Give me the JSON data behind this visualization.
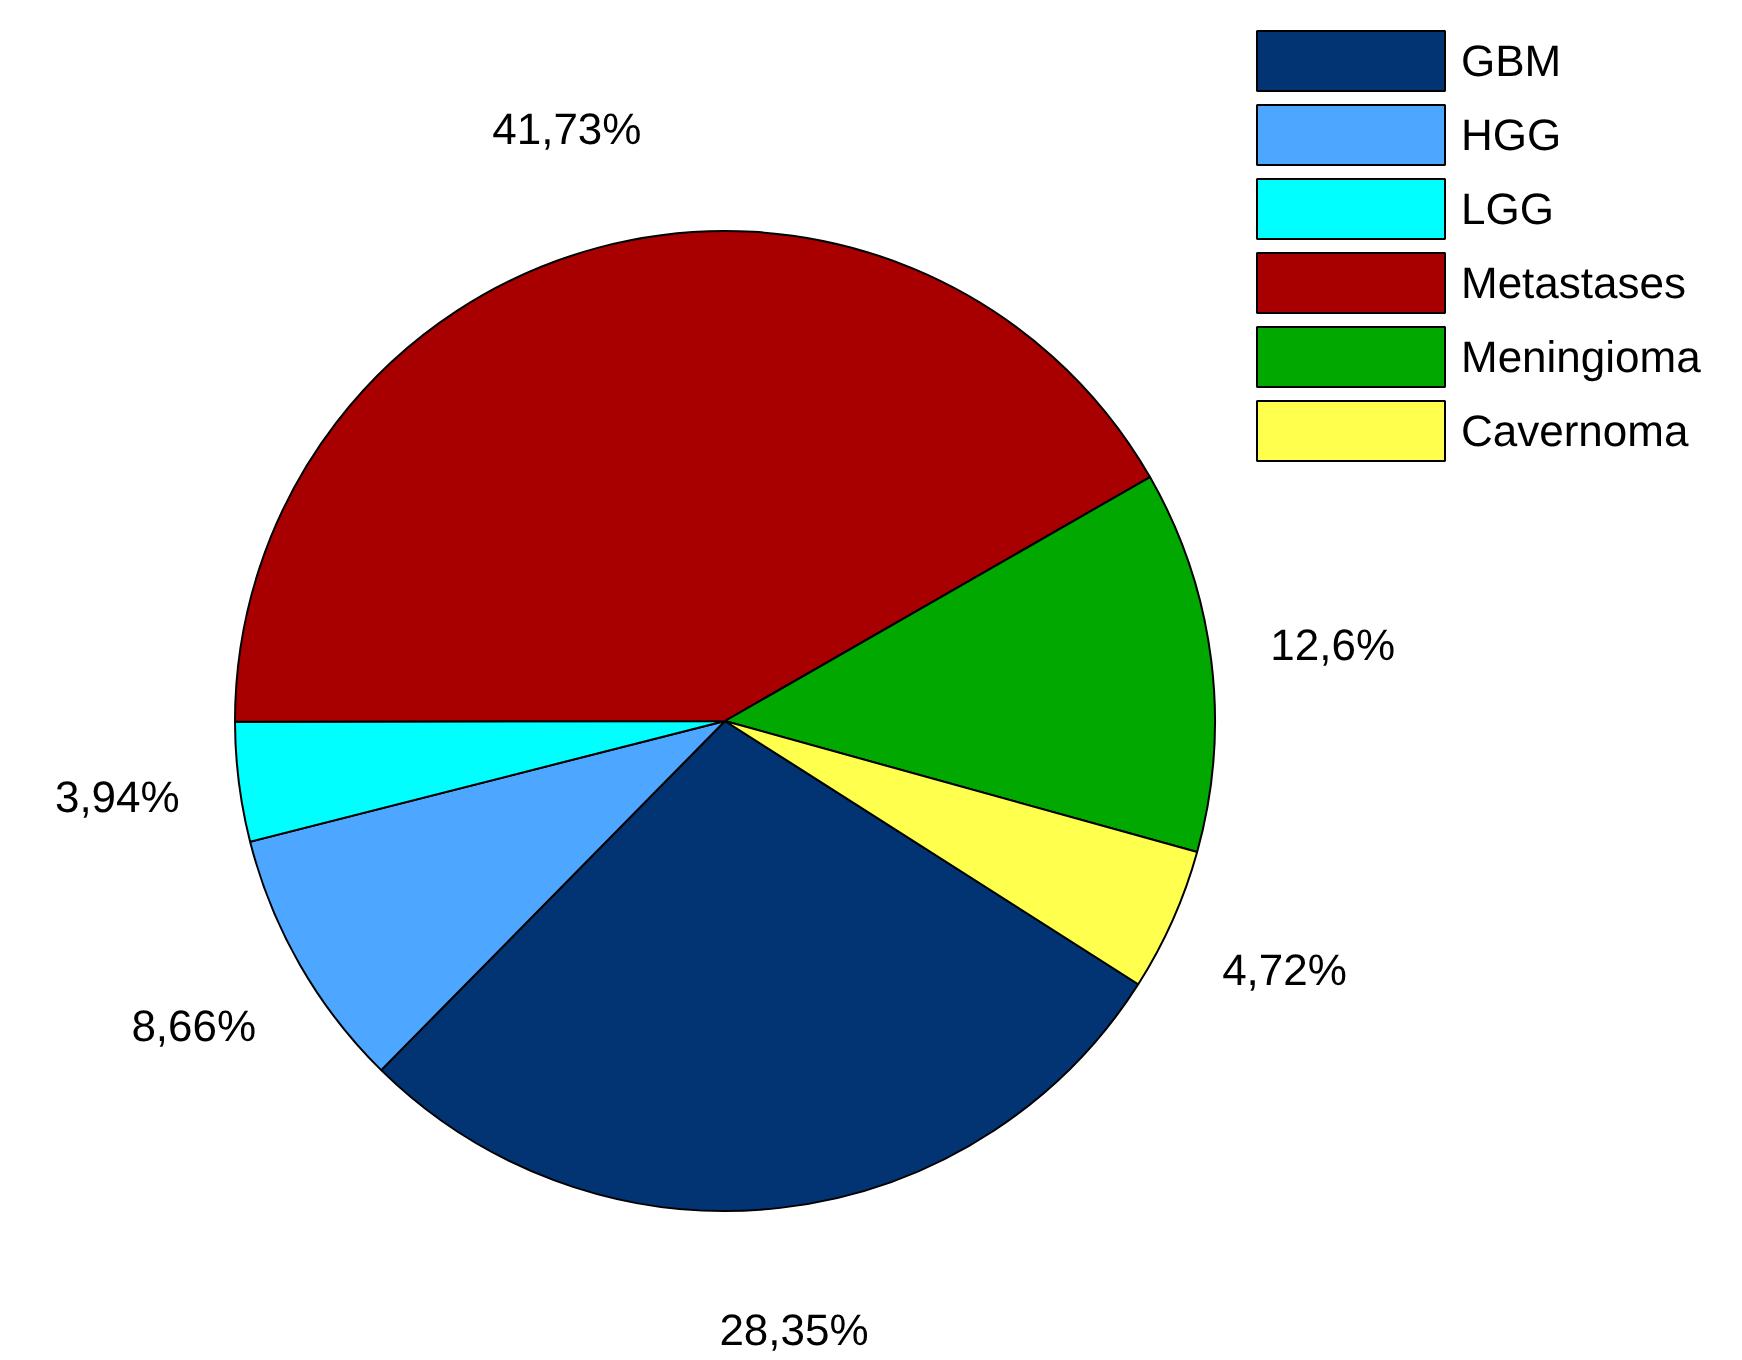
{
  "chart_data": {
    "type": "pie",
    "categories": [
      "GBM",
      "HGG",
      "LGG",
      "Metastases",
      "Meningioma",
      "Cavernoma"
    ],
    "values": [
      28.35,
      8.66,
      3.94,
      41.73,
      12.6,
      4.72
    ],
    "colors": [
      "#023474",
      "#4da6ff",
      "#00ffff",
      "#a80000",
      "#00a800",
      "#ffff4d"
    ],
    "value_labels": [
      "28,35%",
      "8,66%",
      "3,94%",
      "41,73%",
      "12,6%",
      "4,72%"
    ],
    "legend": "top right"
  }
}
